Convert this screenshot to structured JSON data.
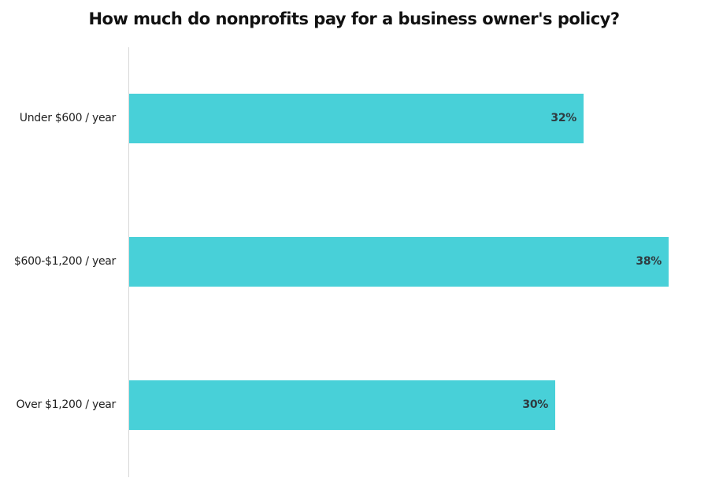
{
  "chart": {
    "title": "How much do nonprofits pay for a business owner's policy?",
    "bar_color": "#48d0d8",
    "rows": [
      {
        "label": "Under $600 / year",
        "value_label": "32%",
        "value": 32
      },
      {
        "label": "$600-$1,200 / year",
        "value_label": "38%",
        "value": 38
      },
      {
        "label": "Over $1,200 / year",
        "value_label": "30%",
        "value": 30
      }
    ]
  },
  "chart_data": {
    "type": "bar",
    "orientation": "horizontal",
    "title": "How much do nonprofits pay for a business owner's policy?",
    "categories": [
      "Under $600 / year",
      "$600-$1,200 / year",
      "Over $1,200 / year"
    ],
    "values": [
      32,
      38,
      30
    ],
    "value_labels": [
      "32%",
      "38%",
      "30%"
    ],
    "xlabel": "",
    "ylabel": "",
    "unit": "%",
    "grid": false,
    "legend": null
  }
}
